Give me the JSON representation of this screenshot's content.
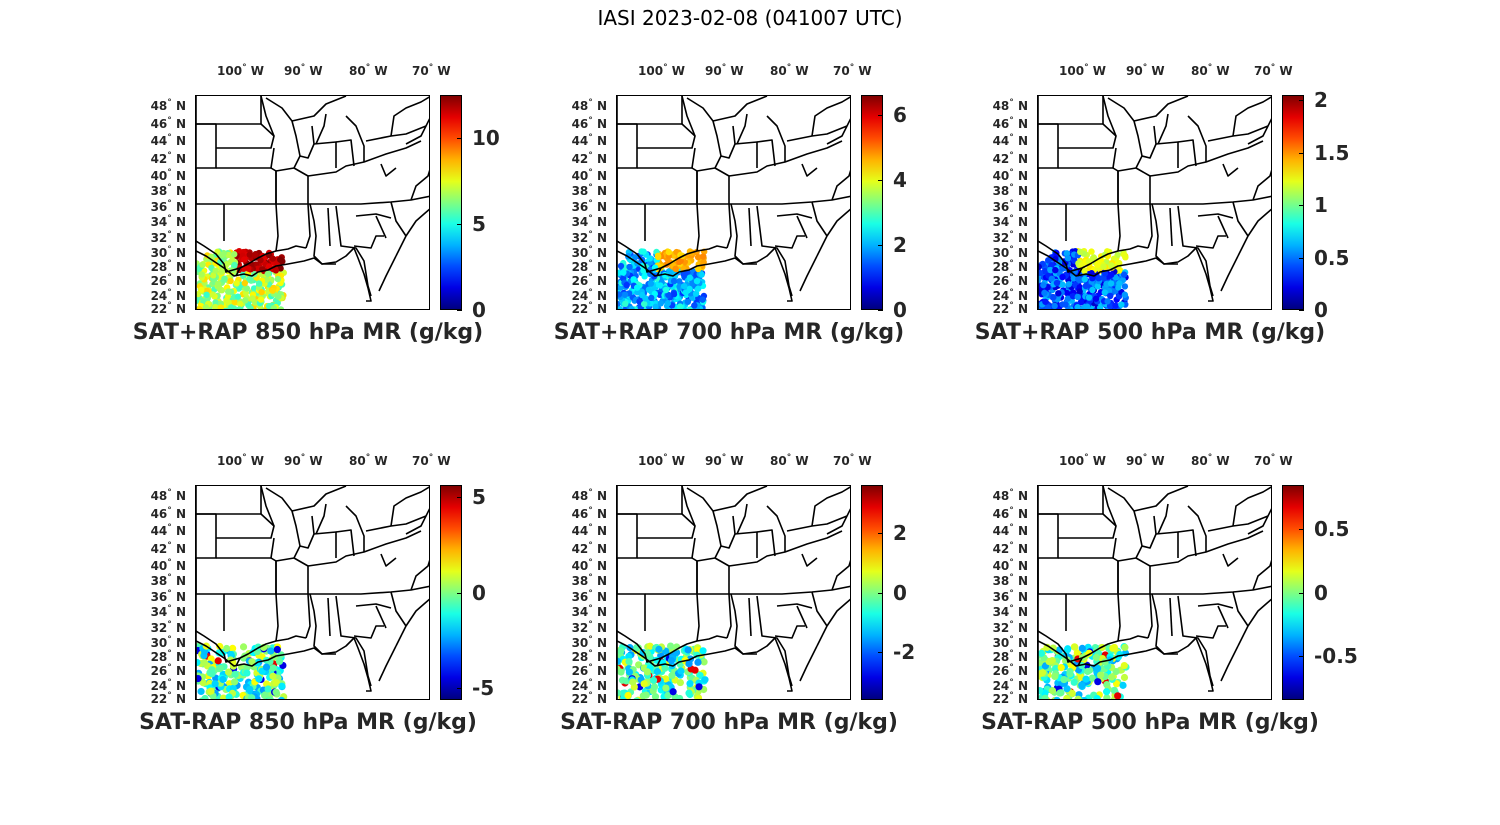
{
  "figure": {
    "title": "IASI 2023-02-08 (041007 UTC)"
  },
  "map_axes": {
    "lon_labels": [
      "100",
      "90",
      "80",
      "70"
    ],
    "lon_suffix": "W",
    "lat_labels": [
      "48",
      "46",
      "44",
      "42",
      "40",
      "38",
      "36",
      "34",
      "32",
      "30",
      "28",
      "26",
      "24",
      "22"
    ],
    "lat_suffix": "N",
    "degree_symbol": "°"
  },
  "colormap": "jet",
  "panels": [
    {
      "id": "p1",
      "title": "SAT+RAP 850 hPa MR (g/kg)",
      "cbar_min": 0,
      "cbar_max": 12.5,
      "cbar_ticks": [
        {
          "v": 0,
          "t": "0"
        },
        {
          "v": 5,
          "t": "5"
        },
        {
          "v": 10,
          "t": "10"
        }
      ],
      "field": "sum",
      "swath": "wide",
      "dominant_level": 0.55
    },
    {
      "id": "p2",
      "title": "SAT+RAP 700 hPa MR (g/kg)",
      "cbar_min": 0,
      "cbar_max": 6.6,
      "cbar_ticks": [
        {
          "v": 0,
          "t": "0"
        },
        {
          "v": 2,
          "t": "2"
        },
        {
          "v": 4,
          "t": "4"
        },
        {
          "v": 6,
          "t": "6"
        }
      ],
      "field": "sum",
      "swath": "wide",
      "dominant_level": 0.3
    },
    {
      "id": "p3",
      "title": "SAT+RAP 500 hPa MR (g/kg)",
      "cbar_min": 0,
      "cbar_max": 2.05,
      "cbar_ticks": [
        {
          "v": 0,
          "t": "0"
        },
        {
          "v": 0.5,
          "t": "0.5"
        },
        {
          "v": 1,
          "t": "1"
        },
        {
          "v": 1.5,
          "t": "1.5"
        },
        {
          "v": 2,
          "t": "2"
        }
      ],
      "field": "sum",
      "swath": "wide",
      "dominant_level": 0.2
    },
    {
      "id": "p4",
      "title": "SAT-RAP 850 hPa MR (g/kg)",
      "cbar_min": -5.6,
      "cbar_max": 5.6,
      "cbar_ticks": [
        {
          "v": -5,
          "t": "-5"
        },
        {
          "v": 0,
          "t": "0"
        },
        {
          "v": 5,
          "t": "5"
        }
      ],
      "field": "diff",
      "swath": "dots",
      "dominant_level": 0.45
    },
    {
      "id": "p5",
      "title": "SAT-RAP 700 hPa MR (g/kg)",
      "cbar_min": -3.6,
      "cbar_max": 3.6,
      "cbar_ticks": [
        {
          "v": -2,
          "t": "-2"
        },
        {
          "v": 0,
          "t": "0"
        },
        {
          "v": 2,
          "t": "2"
        }
      ],
      "field": "diff",
      "swath": "dots",
      "dominant_level": 0.45
    },
    {
      "id": "p6",
      "title": "SAT-RAP 500 hPa MR (g/kg)",
      "cbar_min": -0.85,
      "cbar_max": 0.85,
      "cbar_ticks": [
        {
          "v": -0.5,
          "t": "-0.5"
        },
        {
          "v": 0,
          "t": "0"
        },
        {
          "v": 0.5,
          "t": "0.5"
        }
      ],
      "field": "diff",
      "swath": "dots",
      "dominant_level": 0.45
    }
  ]
}
